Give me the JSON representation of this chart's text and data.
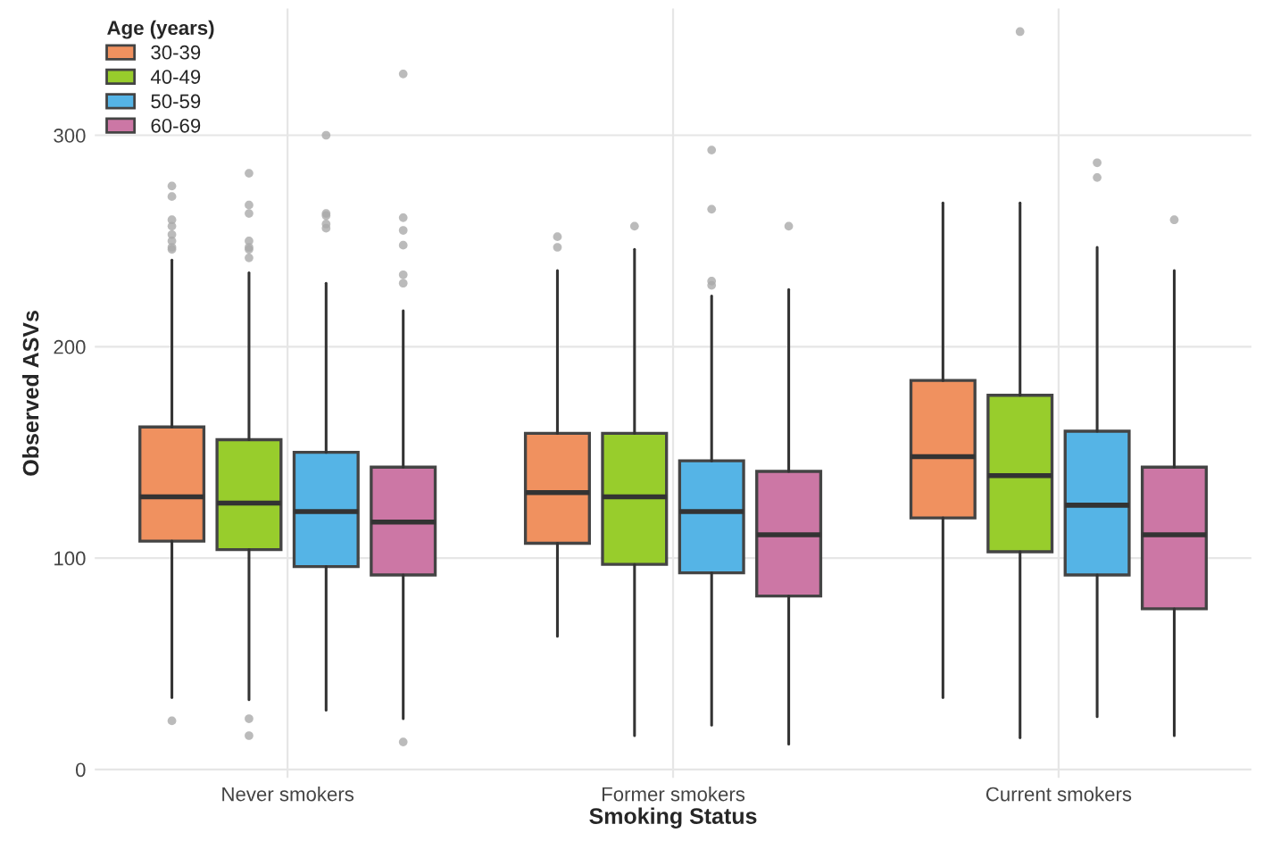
{
  "chart_data": {
    "type": "box",
    "xlabel": "Smoking Status",
    "ylabel": "Observed ASVs",
    "legend_title": "Age (years)",
    "categories": [
      "Never smokers",
      "Former smokers",
      "Current smokers"
    ],
    "ylim": [
      -4,
      360
    ],
    "yticks": [
      0,
      100,
      200,
      300
    ],
    "grid": true,
    "legend": "top left",
    "series": [
      {
        "name": "30-39",
        "color": "#f0915f",
        "boxes": [
          {
            "low": 34,
            "q1": 108,
            "median": 129,
            "q3": 162,
            "high": 241,
            "outliers": [
              23,
              246,
              247,
              250,
              253,
              257,
              260,
              271,
              276
            ]
          },
          {
            "low": 63,
            "q1": 107,
            "median": 131,
            "q3": 159,
            "high": 236,
            "outliers": [
              247,
              252
            ]
          },
          {
            "low": 34,
            "q1": 119,
            "median": 148,
            "q3": 184,
            "high": 268
          }
        ]
      },
      {
        "name": "40-49",
        "color": "#98cd2c",
        "boxes": [
          {
            "low": 33,
            "q1": 104,
            "median": 126,
            "q3": 156,
            "high": 235,
            "outliers": [
              24,
              16,
              242,
              246,
              247,
              250,
              263,
              267,
              282
            ]
          },
          {
            "low": 16,
            "q1": 97,
            "median": 129,
            "q3": 159,
            "high": 246,
            "outliers": [
              257
            ]
          },
          {
            "low": 15,
            "q1": 103,
            "median": 139,
            "q3": 177,
            "high": 268,
            "outliers": [
              349
            ]
          }
        ]
      },
      {
        "name": "50-59",
        "color": "#55b4e6",
        "boxes": [
          {
            "low": 28,
            "q1": 96,
            "median": 122,
            "q3": 150,
            "high": 230,
            "outliers": [
              256,
              258,
              262,
              263,
              300
            ]
          },
          {
            "low": 21,
            "q1": 93,
            "median": 122,
            "q3": 146,
            "high": 224,
            "outliers": [
              229,
              231,
              265,
              293
            ]
          },
          {
            "low": 25,
            "q1": 92,
            "median": 125,
            "q3": 160,
            "high": 247,
            "outliers": [
              280,
              287
            ]
          }
        ]
      },
      {
        "name": "60-69",
        "color": "#cc77a5",
        "boxes": [
          {
            "low": 24,
            "q1": 92,
            "median": 117,
            "q3": 143,
            "high": 217,
            "outliers": [
              13,
              230,
              234,
              248,
              255,
              261,
              329
            ]
          },
          {
            "low": 12,
            "q1": 82,
            "median": 111,
            "q3": 141,
            "high": 227,
            "outliers": [
              257
            ]
          },
          {
            "low": 16,
            "q1": 76,
            "median": 111,
            "q3": 143,
            "high": 236,
            "outliers": [
              260
            ]
          }
        ]
      }
    ]
  }
}
